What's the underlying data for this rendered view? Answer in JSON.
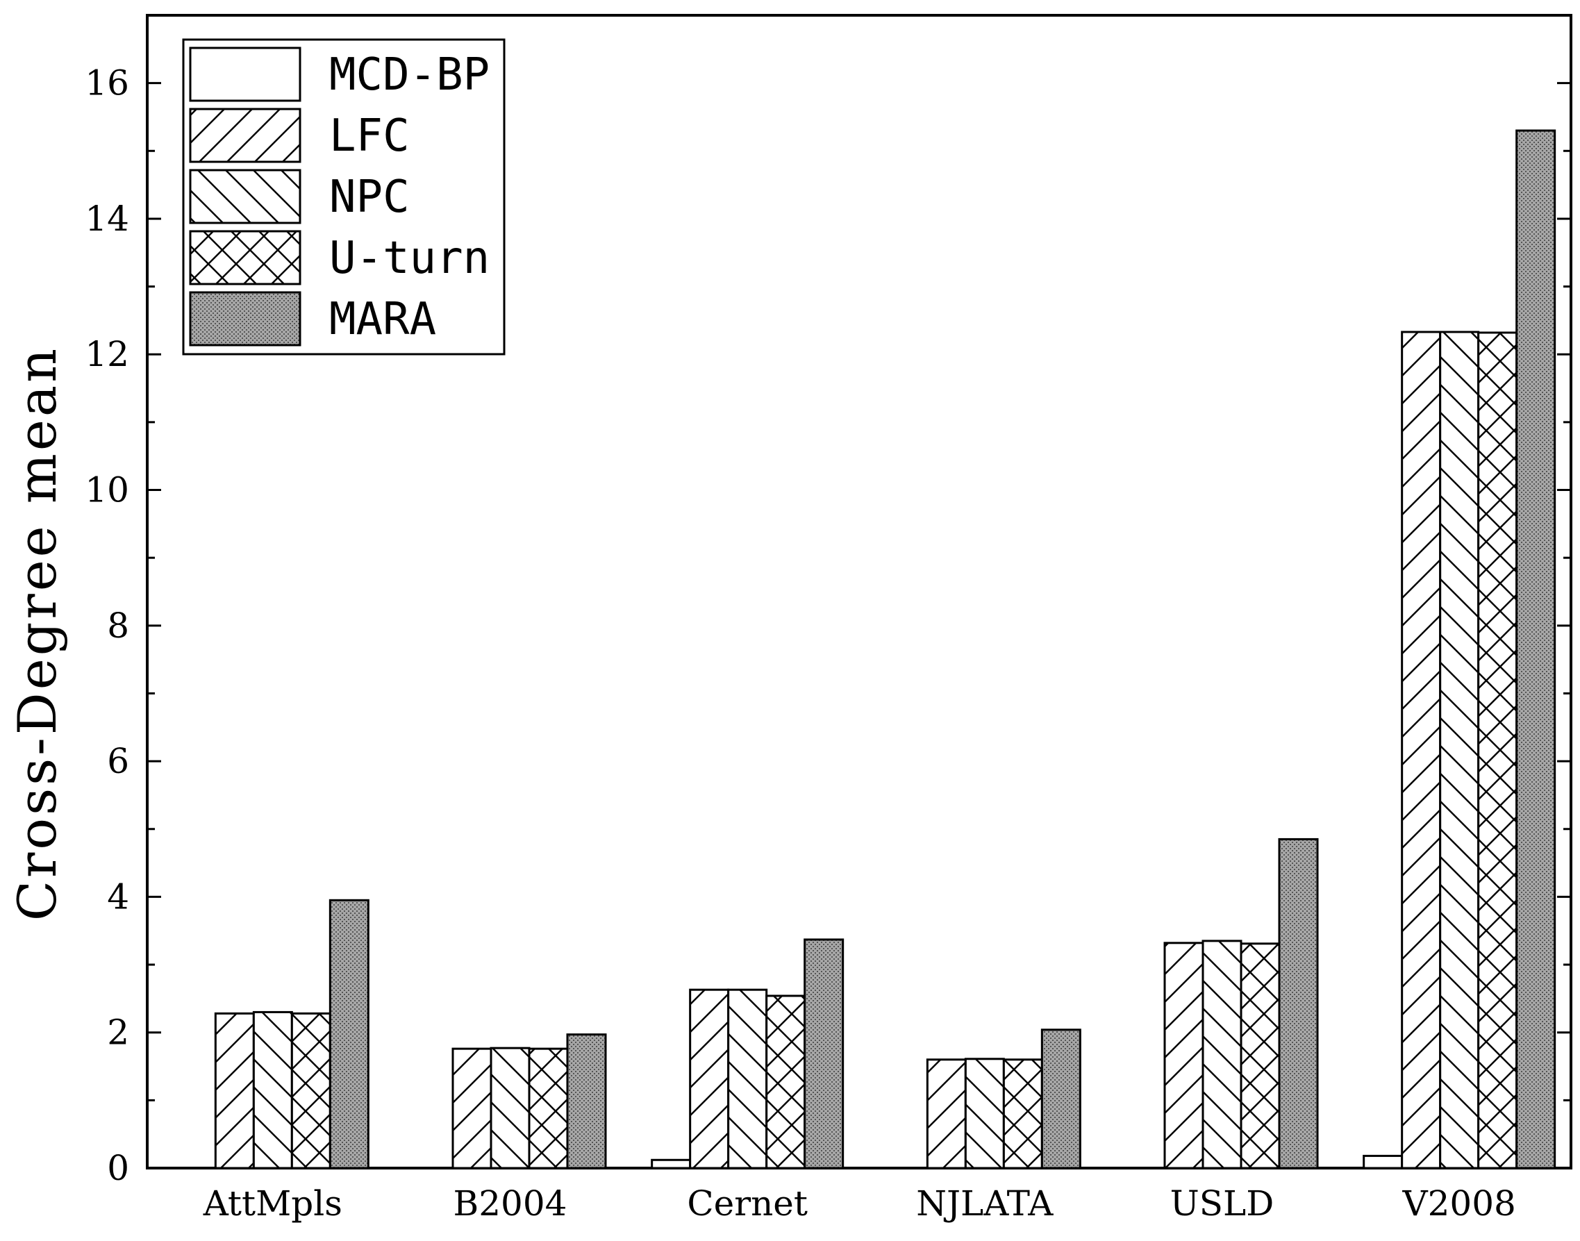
{
  "chart_data": {
    "type": "bar",
    "title": "",
    "xlabel": "",
    "ylabel": "Cross-Degree mean",
    "ylim": [
      0,
      17
    ],
    "yticks": [
      0,
      2,
      4,
      6,
      8,
      10,
      12,
      14,
      16
    ],
    "grid": false,
    "legend_position": "top-left",
    "categories": [
      "AttMpls",
      "B2004",
      "Cernet",
      "NJLATA",
      "USLD",
      "V2008"
    ],
    "series": [
      {
        "name": "MCD-BP",
        "pattern": "none",
        "fill": "#ffffff",
        "values": [
          0.0,
          0.0,
          0.12,
          0.0,
          0.0,
          0.18
        ]
      },
      {
        "name": "LFC",
        "pattern": "forward-diagonal",
        "fill": "#ffffff",
        "values": [
          2.28,
          1.76,
          2.63,
          1.6,
          3.32,
          12.33
        ]
      },
      {
        "name": "NPC",
        "pattern": "backward-diagonal",
        "fill": "#ffffff",
        "values": [
          2.3,
          1.77,
          2.63,
          1.61,
          3.35,
          12.33
        ]
      },
      {
        "name": "U-turn",
        "pattern": "crosshatch",
        "fill": "#ffffff",
        "values": [
          2.28,
          1.76,
          2.54,
          1.6,
          3.31,
          12.32
        ]
      },
      {
        "name": "MARA",
        "pattern": "dotted-gray",
        "fill": "#9a9a9a",
        "values": [
          3.95,
          1.97,
          3.37,
          2.04,
          4.85,
          15.3
        ]
      }
    ]
  }
}
